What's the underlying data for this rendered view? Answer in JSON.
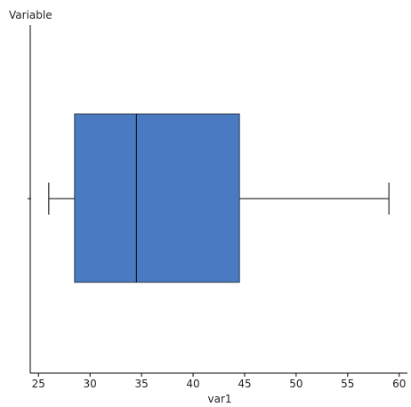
{
  "chart_data": {
    "type": "boxplot",
    "title": "",
    "xlabel": "var1",
    "ylabel": "Variable",
    "xlim": [
      24.2,
      60.8
    ],
    "xticks": [
      "25",
      "30",
      "35",
      "40",
      "45",
      "50",
      "55",
      "60"
    ],
    "ytick_marks": 1,
    "grid": false,
    "series": [
      {
        "min": 26,
        "q1": 28.5,
        "median": 34.5,
        "q3": 44.5,
        "max": 59
      }
    ],
    "box_fill": "#4A7AC2",
    "box_stroke": "#2E3A4A",
    "line_color": "#000000"
  }
}
